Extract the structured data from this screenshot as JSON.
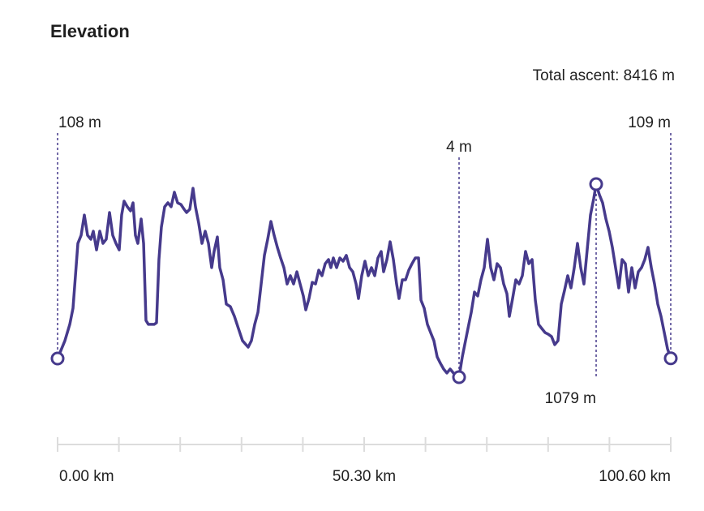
{
  "chart_data": {
    "type": "line",
    "title": "Elevation",
    "annotation": "Total ascent: 8416 m",
    "color": "#463a8c",
    "xlim": [
      0,
      100.6
    ],
    "xticks": [
      {
        "value": 0,
        "label": "0.00 km"
      },
      {
        "value": 50.3,
        "label": "50.30 km"
      },
      {
        "value": 100.6,
        "label": "100.60 km"
      }
    ],
    "xminorticks": [
      10.06,
      20.12,
      30.18,
      40.24,
      60.36,
      70.42,
      80.48,
      90.54
    ],
    "markers": [
      {
        "x": 0,
        "value": 108,
        "label": "108 m"
      },
      {
        "x": 65.87,
        "value": 4,
        "label": "4 m"
      },
      {
        "x": 88.36,
        "value": 1079,
        "label": "1079 m"
      },
      {
        "x": 100.6,
        "value": 109,
        "label": "109 m"
      }
    ],
    "series": [
      {
        "name": "Elevation",
        "x": [
          0,
          1.2,
          2,
          2.53,
          2.93,
          3.33,
          3.86,
          4.39,
          4.92,
          5.46,
          5.86,
          6.39,
          6.92,
          7.45,
          7.98,
          8.52,
          9.05,
          9.58,
          10.11,
          10.51,
          10.91,
          11.44,
          11.98,
          12.38,
          12.77,
          13.17,
          13.71,
          14.11,
          14.5,
          14.9,
          15.84,
          16.23,
          16.63,
          17.03,
          17.57,
          18.1,
          18.63,
          19.16,
          19.69,
          20.23,
          20.76,
          21.16,
          21.69,
          22.22,
          22.62,
          23.15,
          23.69,
          24.22,
          24.75,
          25.28,
          25.68,
          26.21,
          26.61,
          27.15,
          27.68,
          28.34,
          29.01,
          29.67,
          30.34,
          31.27,
          31.8,
          32.34,
          32.87,
          33.4,
          33.93,
          34.47,
          35,
          35.53,
          36.06,
          36.59,
          37.13,
          37.66,
          38.19,
          38.72,
          39.26,
          39.79,
          40.32,
          40.72,
          41.25,
          41.78,
          42.32,
          42.85,
          43.38,
          43.91,
          44.45,
          44.84,
          45.24,
          45.78,
          46.31,
          46.84,
          47.37,
          47.91,
          48.44,
          48.97,
          49.37,
          49.9,
          50.43,
          50.97,
          51.5,
          52.03,
          52.56,
          53.09,
          53.49,
          54.03,
          54.56,
          55.09,
          55.62,
          56.02,
          56.56,
          57.09,
          57.62,
          58.15,
          58.69,
          59.22,
          59.62,
          60.15,
          60.68,
          61.21,
          61.74,
          62.28,
          62.81,
          63.34,
          63.87,
          64.41,
          64.94,
          65.87,
          66.4,
          66.8,
          67.33,
          67.87,
          68.4,
          68.93,
          69.46,
          70,
          70.53,
          71.06,
          71.59,
          72.12,
          72.66,
          73.19,
          73.72,
          74.12,
          74.65,
          75.18,
          75.72,
          76.25,
          76.78,
          77.31,
          77.85,
          78.38,
          78.91,
          79.44,
          79.98,
          80.51,
          81.04,
          81.57,
          82.1,
          82.64,
          83.17,
          83.7,
          84.23,
          84.77,
          85.3,
          85.83,
          86.36,
          86.89,
          87.43,
          87.96,
          88.36,
          88.89,
          89.42,
          89.96,
          90.49,
          91.02,
          91.55,
          92.08,
          92.62,
          93.15,
          93.68,
          94.21,
          94.75,
          95.28,
          95.81,
          96.34,
          96.87,
          97.41,
          97.94,
          98.47,
          99,
          99.54,
          100.07,
          100.6
        ],
        "values": [
          108,
          207,
          298,
          388,
          569,
          749,
          794,
          907,
          794,
          772,
          817,
          713,
          817,
          749,
          772,
          921,
          794,
          749,
          713,
          907,
          984,
          953,
          930,
          975,
          794,
          749,
          885,
          749,
          320,
          298,
          298,
          307,
          659,
          840,
          953,
          975,
          953,
          1034,
          975,
          966,
          939,
          921,
          939,
          1056,
          953,
          862,
          749,
          817,
          749,
          614,
          704,
          785,
          614,
          546,
          411,
          397,
          343,
          275,
          207,
          171,
          207,
          298,
          365,
          523,
          682,
          772,
          871,
          794,
          727,
          668,
          614,
          523,
          569,
          523,
          591,
          523,
          456,
          379,
          442,
          532,
          523,
          600,
          569,
          636,
          659,
          614,
          668,
          614,
          668,
          650,
          682,
          614,
          591,
          523,
          442,
          569,
          650,
          569,
          614,
          569,
          668,
          704,
          591,
          659,
          758,
          659,
          523,
          442,
          546,
          546,
          600,
          636,
          668,
          668,
          433,
          388,
          298,
          252,
          207,
          117,
          81,
          49,
          27,
          49,
          27,
          4,
          117,
          185,
          275,
          365,
          478,
          456,
          546,
          614,
          772,
          614,
          546,
          636,
          614,
          523,
          469,
          343,
          442,
          546,
          523,
          569,
          704,
          636,
          659,
          433,
          298,
          275,
          252,
          243,
          230,
          185,
          207,
          411,
          487,
          569,
          501,
          614,
          749,
          614,
          523,
          713,
          907,
          998,
          1079,
          1020,
          975,
          885,
          817,
          727,
          614,
          501,
          659,
          636,
          478,
          614,
          501,
          591,
          614,
          659,
          727,
          614,
          523,
          411,
          343,
          252,
          162,
          109
        ]
      }
    ]
  }
}
